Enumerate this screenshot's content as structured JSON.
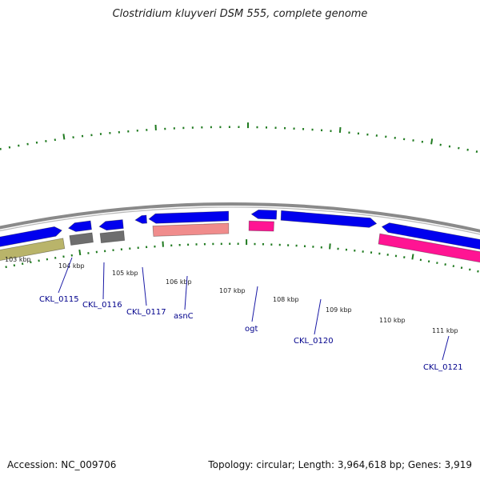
{
  "title": "Clostridium kluyveri DSM 555, complete genome",
  "footer": {
    "accession": "Accession: NC_009706",
    "topology": "Topology: circular; Length: 3,964,618 bp; Genes: 3,919"
  },
  "colors": {
    "backbone": "#8a8a8a",
    "ticks": "#1f7a1f",
    "cds": "#0000ee",
    "gray_feature": "#6e6e6e",
    "olive_feature": "#b9b46a",
    "salmon_feature": "#f08c8c",
    "pink_feature": "#ff1493",
    "label": "#00008b"
  },
  "scale_labels": [
    "103 kbp",
    "104 kbp",
    "105 kbp",
    "106 kbp",
    "107 kbp",
    "108 kbp",
    "109 kbp",
    "110 kbp",
    "111 kbp"
  ],
  "gene_labels": [
    "CKL_0115",
    "CKL_0116",
    "CKL_0117",
    "asnC",
    "ogt",
    "CKL_0120",
    "CKL_0121"
  ]
}
